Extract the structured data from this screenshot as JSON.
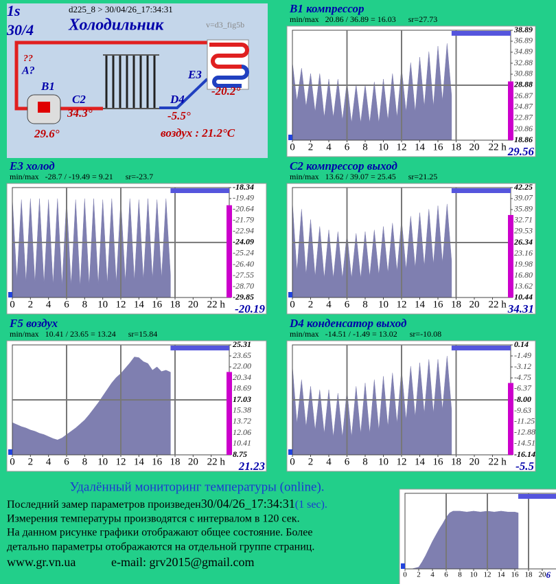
{
  "diagram": {
    "interval": "1s",
    "date": "30/4",
    "header": "d225_8  >  30/04/26_17:34:31",
    "title": "Холодильник",
    "version": "v=d3_fig5b",
    "unknown": "??",
    "a_label": "A?",
    "b1_label": "B1",
    "b1_value": "29.6°",
    "c2_label": "C2",
    "c2_value": "34.3°",
    "d4_label": "D4",
    "d4_value": "-5.5°",
    "e3_label": "E3",
    "e3_value": "-20.2°",
    "air": "воздух : 21.2°C"
  },
  "chart_data": [
    {
      "type": "area",
      "title": "B1 компрессор",
      "subtitle": "min/max   20.86 / 36.89 = 16.03      sr=27.73",
      "color": "#7f7fb0",
      "current": 29.56,
      "x": [
        0,
        0.5,
        1,
        1.5,
        2,
        2.5,
        3,
        3.5,
        4,
        4.5,
        5,
        5.5,
        6,
        6.5,
        7,
        7.5,
        8,
        8.5,
        9,
        9.5,
        10,
        10.5,
        11,
        11.5,
        12,
        12.5,
        13,
        13.5,
        14,
        14.5,
        15,
        15.5,
        16,
        16.5,
        17,
        17.5
      ],
      "values": [
        33,
        26,
        32,
        25,
        31,
        24,
        31,
        23,
        30,
        23,
        30,
        22.5,
        29.5,
        22,
        29,
        22,
        29,
        22,
        29.5,
        22,
        30,
        22.5,
        31,
        23,
        32,
        24,
        33,
        24,
        34,
        25,
        35,
        25,
        36,
        26,
        36.5,
        27
      ],
      "xlim": [
        0,
        24
      ],
      "xticks": [
        0,
        2,
        4,
        6,
        8,
        10,
        12,
        14,
        16,
        18,
        20,
        {
          "value": 22,
          "label": "22 h"
        }
      ],
      "ylim": [
        18.86,
        38.89
      ],
      "yticks": [
        38.89,
        36.89,
        34.89,
        32.88,
        30.88,
        28.88,
        26.87,
        24.87,
        22.87,
        20.86,
        18.86
      ]
    },
    {
      "type": "area",
      "title": "E3 холод",
      "subtitle": "min/max   -28.7 / -19.49 = 9.21      sr=-23.7",
      "color": "#7f7fb0",
      "current": -20.19,
      "x": [
        0,
        0.5,
        1,
        1.5,
        2,
        2.5,
        3,
        3.5,
        4,
        4.5,
        5,
        5.5,
        6,
        6.5,
        7,
        7.5,
        8,
        8.5,
        9,
        9.5,
        10,
        10.5,
        11,
        11.5,
        12,
        12.5,
        13,
        13.5,
        14,
        14.5,
        15,
        15.5,
        16,
        16.5,
        17,
        17.5
      ],
      "values": [
        -19.5,
        -28,
        -19.6,
        -28.2,
        -19.5,
        -28.3,
        -19.5,
        -28.4,
        -19.6,
        -28.5,
        -19.5,
        -28.6,
        -19.5,
        -28.6,
        -19.6,
        -28.7,
        -19.5,
        -28.6,
        -19.5,
        -28.5,
        -19.6,
        -28.4,
        -19.5,
        -28.3,
        -19.6,
        -28.2,
        -19.5,
        -28.1,
        -19.6,
        -28,
        -19.5,
        -27.9,
        -19.6,
        -27.8,
        -19.5,
        -27.5
      ],
      "xlim": [
        0,
        24
      ],
      "xticks": [
        0,
        2,
        4,
        6,
        8,
        10,
        12,
        14,
        16,
        18,
        20,
        {
          "value": 22,
          "label": "22 h"
        }
      ],
      "ylim": [
        -29.85,
        -18.34
      ],
      "yticks": [
        -18.34,
        -19.49,
        -20.64,
        -21.79,
        -22.94,
        -24.09,
        -25.24,
        {
          "value": -26.4,
          "label": "-26.40"
        },
        -27.55,
        {
          "value": -28.7,
          "label": "-28.70"
        },
        -29.85
      ]
    },
    {
      "type": "area",
      "title": "C2 компрессор выход",
      "subtitle": "min/max   13.62 / 39.07 = 25.45      sr=21.25",
      "color": "#7f7fb0",
      "current": 34.31,
      "x": [
        0,
        0.5,
        1,
        1.5,
        2,
        2.5,
        3,
        3.5,
        4,
        4.5,
        5,
        5.5,
        6,
        6.5,
        7,
        7.5,
        8,
        8.5,
        9,
        9.5,
        10,
        10.5,
        11,
        11.5,
        12,
        12.5,
        13,
        13.5,
        14,
        14.5,
        15,
        15.5,
        16,
        16.5,
        17,
        17.5
      ],
      "values": [
        38,
        18,
        36,
        17,
        33,
        16.5,
        31,
        16,
        30,
        16,
        29.5,
        16,
        29,
        16,
        29,
        16,
        29.5,
        16.5,
        30,
        17,
        31,
        17.5,
        32,
        18,
        33,
        18.5,
        34,
        19,
        35,
        19.5,
        36,
        20,
        37,
        20.5,
        37.5,
        21
      ],
      "xlim": [
        0,
        24
      ],
      "xticks": [
        0,
        2,
        4,
        6,
        8,
        10,
        12,
        14,
        16,
        18,
        20,
        {
          "value": 22,
          "label": "22 h"
        }
      ],
      "ylim": [
        10.44,
        42.25
      ],
      "yticks": [
        42.25,
        39.07,
        35.89,
        32.71,
        29.53,
        26.34,
        23.16,
        19.98,
        {
          "value": 16.8,
          "label": "16.80"
        },
        13.62,
        10.44
      ]
    },
    {
      "type": "area",
      "title": "F5 воздух",
      "subtitle": "min/max   10.41 / 23.65 = 13.24      sr=15.84",
      "color": "#7f7fb0",
      "current": 21.23,
      "x": [
        0,
        0.5,
        1,
        1.5,
        2,
        2.5,
        3,
        3.5,
        4,
        4.5,
        5,
        5.5,
        6,
        6.5,
        7,
        7.5,
        8,
        8.5,
        9,
        9.5,
        10,
        10.5,
        11,
        11.5,
        12,
        12.5,
        13,
        13.5,
        14,
        14.5,
        15,
        15.5,
        16,
        16.5,
        17,
        17.5
      ],
      "values": [
        13.6,
        13.3,
        13.0,
        12.8,
        12.5,
        12.3,
        12.0,
        11.8,
        11.5,
        11.2,
        11.0,
        11.3,
        11.8,
        12.3,
        12.8,
        13.4,
        14.0,
        14.8,
        15.7,
        16.6,
        17.6,
        18.6,
        19.6,
        20.4,
        21.0,
        21.8,
        22.6,
        23.5,
        23.4,
        22.8,
        22.5,
        21.5,
        22.0,
        21.3,
        21.5,
        21.2
      ],
      "xlim": [
        0,
        24
      ],
      "xticks": [
        0,
        2,
        4,
        6,
        8,
        10,
        12,
        14,
        16,
        18,
        20,
        {
          "value": 22,
          "label": "22 h"
        }
      ],
      "ylim": [
        8.75,
        25.31
      ],
      "yticks": [
        25.31,
        23.65,
        {
          "value": 22,
          "label": "22.00"
        },
        20.34,
        18.69,
        17.03,
        15.38,
        13.72,
        12.06,
        10.41,
        8.75
      ]
    },
    {
      "type": "area",
      "title": "D4 конденсатор выход",
      "subtitle": "min/max   -14.51 / -1.49 = 13.02      sr=-10.08",
      "color": "#7f7fb0",
      "current": -5.5,
      "x": [
        0,
        0.5,
        1,
        1.5,
        2,
        2.5,
        3,
        3.5,
        4,
        4.5,
        5,
        5.5,
        6,
        6.5,
        7,
        7.5,
        8,
        8.5,
        9,
        9.5,
        10,
        10.5,
        11,
        11.5,
        12,
        12.5,
        13,
        13.5,
        14,
        14.5,
        15,
        15.5,
        16,
        16.5,
        17,
        17.5
      ],
      "values": [
        -3,
        -11.5,
        -5,
        -12,
        -6,
        -12.5,
        -6.5,
        -13,
        -6.5,
        -13.5,
        -7,
        -13.5,
        -6.5,
        -13.5,
        -6,
        -13,
        -5.5,
        -13,
        -5,
        -12.5,
        -4.5,
        -12,
        -4,
        -11.5,
        -3.5,
        -11,
        -3,
        -10.5,
        -2.5,
        -10,
        -2,
        -10,
        -2,
        -9.5,
        -1.5,
        -9.5
      ],
      "xlim": [
        0,
        24
      ],
      "xticks": [
        0,
        2,
        4,
        6,
        8,
        10,
        12,
        14,
        16,
        18,
        20,
        {
          "value": 22,
          "label": "22 h"
        }
      ],
      "ylim": [
        -16.14,
        0.14
      ],
      "yticks": [
        0.14,
        -1.49,
        -3.12,
        -4.75,
        -6.37,
        {
          "value": -8,
          "label": "-8.00"
        },
        -9.63,
        -11.25,
        -12.88,
        -14.51,
        -16.14
      ]
    },
    {
      "type": "area",
      "color": "#7f7fb0",
      "current": 6,
      "x": [
        0,
        1,
        2,
        2.5,
        3,
        3.5,
        4,
        4.5,
        5,
        5.5,
        6,
        6.5,
        7,
        8,
        9,
        10,
        11,
        12,
        13,
        14,
        15,
        16,
        16.5
      ],
      "values": [
        0,
        0,
        0.2,
        0.8,
        1.5,
        2.3,
        3.1,
        3.8,
        4.5,
        5.1,
        5.8,
        6.3,
        6.5,
        6.5,
        6.4,
        6.5,
        6.4,
        6.5,
        6.4,
        6.5,
        6.4,
        6.4,
        6.3
      ],
      "xlim": [
        0,
        24
      ],
      "xticks": [
        0,
        2,
        4,
        6,
        8,
        10,
        12,
        14,
        16,
        18,
        20
      ],
      "ylim": [
        0,
        8.5
      ]
    }
  ],
  "footer": {
    "heading": "Удалённый мониторинг температуры (online).",
    "line1": "Последний замер параметров произведен",
    "timestamp": "30/04/26_17:34:31",
    "period": "(1 sec).",
    "line2": "Измерения температуры  производятся с интервалом в 120 сек.",
    "line3": "На данном рисунке графики отображают общее состояние. Более",
    "line4": "детально параметры отображаются на отдельной группе страниц.",
    "site": "www.gr.vn.ua",
    "email": "e-mail: grv2015@gmail.com"
  }
}
